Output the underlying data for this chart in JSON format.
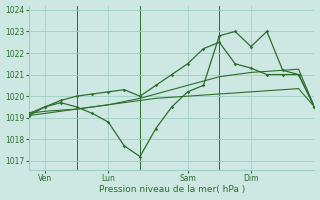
{
  "background_color": "#cde8e2",
  "grid_color": "#9ecec5",
  "line_color": "#2d6e2d",
  "title": "Pression niveau de la mer( hPa )",
  "ylabel_ticks": [
    1017,
    1018,
    1019,
    1020,
    1021,
    1022,
    1023,
    1024
  ],
  "ylim": [
    1016.6,
    1024.2
  ],
  "xlim": [
    0,
    108
  ],
  "day_ticks": [
    6,
    30,
    60,
    84
  ],
  "day_labels": [
    "Ven",
    "Lun",
    "Sam",
    "Dim"
  ],
  "day_vlines": [
    18,
    42,
    72
  ],
  "smooth_line1_x": [
    0,
    6,
    12,
    18,
    24,
    30,
    36,
    42,
    48,
    54,
    60,
    66,
    72,
    78,
    84,
    90,
    96,
    102,
    108
  ],
  "smooth_line1_y": [
    1019.1,
    1019.2,
    1019.3,
    1019.4,
    1019.5,
    1019.6,
    1019.7,
    1019.8,
    1019.9,
    1019.95,
    1020.0,
    1020.05,
    1020.1,
    1020.15,
    1020.2,
    1020.25,
    1020.3,
    1020.35,
    1019.5
  ],
  "smooth_line2_x": [
    0,
    6,
    12,
    18,
    24,
    30,
    36,
    42,
    48,
    54,
    60,
    66,
    72,
    78,
    84,
    90,
    96,
    102,
    108
  ],
  "smooth_line2_y": [
    1019.2,
    1019.3,
    1019.35,
    1019.4,
    1019.5,
    1019.6,
    1019.75,
    1019.9,
    1020.1,
    1020.3,
    1020.5,
    1020.7,
    1020.9,
    1021.0,
    1021.1,
    1021.15,
    1021.2,
    1021.25,
    1019.5
  ],
  "jagged_line1_x": [
    0,
    6,
    12,
    18,
    24,
    30,
    36,
    42,
    48,
    54,
    60,
    66,
    72,
    78,
    84,
    90,
    96,
    102,
    108
  ],
  "jagged_line1_y": [
    1019.1,
    1019.5,
    1019.7,
    1019.5,
    1019.2,
    1018.8,
    1017.7,
    1017.2,
    1018.5,
    1019.5,
    1020.2,
    1020.5,
    1022.8,
    1023.0,
    1022.3,
    1023.0,
    1021.2,
    1021.0,
    1019.5
  ],
  "jagged_line2_x": [
    0,
    6,
    12,
    18,
    24,
    30,
    36,
    42,
    48,
    54,
    60,
    66,
    72,
    78,
    84,
    90,
    96,
    102,
    108
  ],
  "jagged_line2_y": [
    1019.2,
    1019.5,
    1019.8,
    1020.0,
    1020.1,
    1020.2,
    1020.3,
    1020.0,
    1020.5,
    1021.0,
    1021.5,
    1022.2,
    1022.5,
    1021.5,
    1021.3,
    1021.0,
    1021.0,
    1021.0,
    1019.5
  ]
}
